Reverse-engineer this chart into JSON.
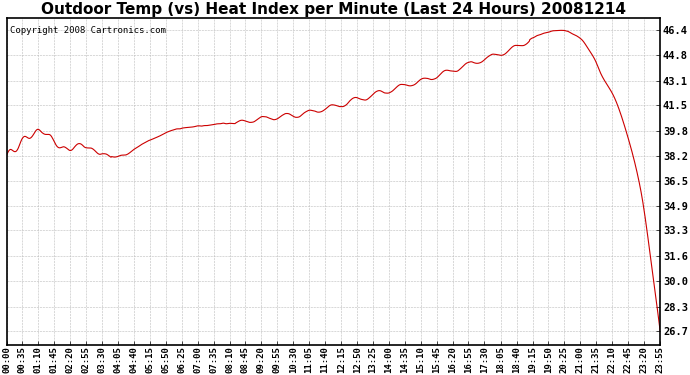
{
  "title": "Outdoor Temp (vs) Heat Index per Minute (Last 24 Hours) 20081214",
  "copyright": "Copyright 2008 Cartronics.com",
  "line_color": "#cc0000",
  "background_color": "#ffffff",
  "grid_color": "#bbbbbb",
  "yticks": [
    26.7,
    28.3,
    30.0,
    31.6,
    33.3,
    34.9,
    36.5,
    38.2,
    39.8,
    41.5,
    43.1,
    44.8,
    46.4
  ],
  "ymin": 25.8,
  "ymax": 47.2,
  "xtick_labels": [
    "00:00",
    "00:35",
    "01:10",
    "01:45",
    "02:20",
    "02:55",
    "03:30",
    "04:05",
    "04:40",
    "05:15",
    "05:50",
    "06:25",
    "07:00",
    "07:35",
    "08:10",
    "08:45",
    "09:20",
    "09:55",
    "10:30",
    "11:05",
    "11:40",
    "12:15",
    "12:50",
    "13:25",
    "14:00",
    "14:35",
    "15:10",
    "15:45",
    "16:20",
    "16:55",
    "17:30",
    "18:05",
    "18:40",
    "19:15",
    "19:50",
    "20:25",
    "21:00",
    "21:35",
    "22:10",
    "22:45",
    "23:20",
    "23:55"
  ],
  "title_fontsize": 11,
  "copyright_fontsize": 6.5,
  "tick_fontsize": 6.5,
  "ytick_fontsize": 7.5
}
